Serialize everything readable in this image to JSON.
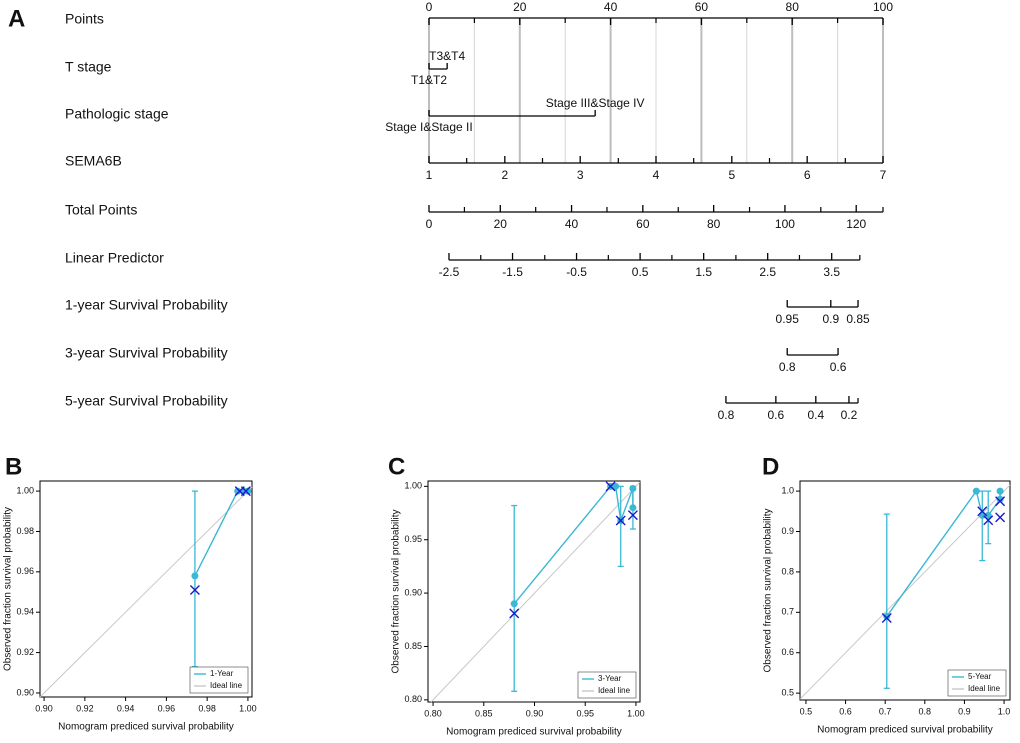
{
  "panel_labels": [
    "A",
    "B",
    "C",
    "D"
  ],
  "nomogram": {
    "rows": [
      {
        "label": "Points",
        "ticks": [
          0,
          20,
          40,
          60,
          80,
          100
        ],
        "tick_points": [
          0,
          20,
          40,
          60,
          80,
          100
        ],
        "minor_points": [
          10,
          30,
          50,
          70,
          90
        ]
      },
      {
        "label": "T stage",
        "categories": [
          "T1&T2",
          "T3&T4"
        ],
        "category_points": [
          0,
          4
        ]
      },
      {
        "label": "Pathologic stage",
        "categories": [
          "Stage I&Stage II",
          "Stage III&Stage IV"
        ],
        "category_points": [
          0,
          36.6
        ]
      },
      {
        "label": "SEMA6B",
        "ticks": [
          1,
          2,
          3,
          4,
          5,
          6,
          7
        ],
        "tick_points": [
          0,
          16.7,
          33.3,
          50,
          66.7,
          83.3,
          100
        ],
        "minor_points": [
          8.3,
          25,
          41.7,
          58.3,
          75,
          91.7
        ]
      },
      {
        "label": "Total Points",
        "ticks": [
          0,
          20,
          40,
          60,
          80,
          100,
          120
        ],
        "tick_points": [
          0,
          15.7,
          31.4,
          47.1,
          62.7,
          78.4,
          94.1
        ],
        "minor_points": [
          7.8,
          23.5,
          39.2,
          54.9,
          70.6,
          86.3,
          100
        ]
      },
      {
        "label": "Linear Predictor",
        "ticks": [
          -2.5,
          -1.5,
          -0.5,
          0.5,
          1.5,
          2.5,
          3.5
        ],
        "tick_points": [
          4.4,
          18.4,
          32.5,
          46.5,
          60.5,
          74.6,
          88.7
        ],
        "minor_points": [
          11.4,
          25.5,
          39.5,
          53.5,
          67.6,
          81.6,
          94.9
        ]
      },
      {
        "label": "1-year Survival Probability",
        "ticks": [
          0.95,
          0.9,
          0.85
        ],
        "tick_points": [
          78.9,
          88.5,
          94.5
        ]
      },
      {
        "label": "3-year Survival Probability",
        "ticks": [
          0.8,
          0.6
        ],
        "tick_points": [
          78.9,
          90.1
        ]
      },
      {
        "label": "5-year Survival Probability",
        "ticks": [
          0.8,
          0.6,
          0.4,
          0.2
        ],
        "tick_points": [
          65.4,
          76.4,
          85.2,
          92.5
        ],
        "minor_points": [
          94.5
        ]
      }
    ]
  },
  "chart_data": [
    {
      "type": "calibration",
      "xlabel": "Nomogram prediced survival probability",
      "ylabel": "Observed fraction survival probability",
      "xlim": [
        0.898,
        1.002
      ],
      "ylim": [
        0.898,
        1.005
      ],
      "xticks": [
        {
          "value": 0.9,
          "label": "0.90"
        },
        0.92,
        0.94,
        0.96,
        0.98,
        {
          "value": 1,
          "label": "1.00"
        }
      ],
      "yticks": [
        {
          "value": 0.9,
          "label": "0.90"
        },
        0.92,
        0.94,
        0.96,
        0.98,
        {
          "value": 1,
          "label": "1.00"
        }
      ],
      "series": [
        {
          "name": "1-Year",
          "color": "#3bb8d4",
          "x": [
            0.974,
            0.995,
            0.998,
            1.0
          ],
          "values": [
            0.958,
            1.0,
            1.0,
            1.0
          ],
          "err_low": [
            0.913,
            null,
            null,
            null
          ],
          "err_high": [
            1.0,
            null,
            null,
            null
          ]
        },
        {
          "name": "Ideal line",
          "color": "#c8c8c8",
          "x": [
            0.898,
            1.002
          ],
          "values": [
            0.898,
            1.002
          ]
        }
      ],
      "markers": {
        "color": "#1a1acc",
        "x": [
          0.974,
          0.996,
          0.999
        ],
        "values": [
          0.951,
          1.0,
          1.0
        ]
      }
    },
    {
      "type": "calibration",
      "xlabel": "Nomogram prediced survival probability",
      "ylabel": "Observed fraction survival probability",
      "xlim": [
        0.795,
        1.004
      ],
      "ylim": [
        0.798,
        1.005
      ],
      "xticks": [
        {
          "value": 0.8,
          "label": "0.80"
        },
        0.85,
        {
          "value": 0.9,
          "label": "0.90"
        },
        0.95,
        {
          "value": 1,
          "label": "1.00"
        }
      ],
      "yticks": [
        {
          "value": 0.8,
          "label": "0.80"
        },
        0.85,
        {
          "value": 0.9,
          "label": "0.90"
        },
        0.95,
        {
          "value": 1,
          "label": "1.00"
        }
      ],
      "series": [
        {
          "name": "3-Year",
          "color": "#3bb8d4",
          "x": [
            0.88,
            0.975,
            0.98,
            0.985,
            0.997,
            0.997
          ],
          "values": [
            0.89,
            1.0,
            1.0,
            0.968,
            0.998,
            0.98
          ],
          "err_low": [
            0.808,
            null,
            null,
            0.925,
            null,
            0.96
          ],
          "err_high": [
            0.982,
            null,
            null,
            1.0,
            null,
            1.0
          ]
        },
        {
          "name": "Ideal line",
          "color": "#c8c8c8",
          "x": [
            0.798,
            1.004
          ],
          "values": [
            0.798,
            1.004
          ]
        }
      ],
      "markers": {
        "color": "#1a1acc",
        "x": [
          0.88,
          0.975,
          0.985,
          0.997
        ],
        "values": [
          0.881,
          1.0,
          0.968,
          0.973
        ]
      }
    },
    {
      "type": "calibration",
      "xlabel": "Nomogram prediced survival probability",
      "ylabel": "Observed fraction survival probability",
      "xlim": [
        0.485,
        1.015
      ],
      "ylim": [
        0.483,
        1.025
      ],
      "xticks": [
        0.5,
        0.6,
        0.7,
        0.8,
        0.9,
        {
          "value": 1,
          "label": "1.0"
        }
      ],
      "yticks": [
        0.5,
        0.6,
        0.7,
        0.8,
        0.9,
        {
          "value": 1,
          "label": "1.0"
        }
      ],
      "series": [
        {
          "name": "5-Year",
          "color": "#3bb8d4",
          "x": [
            0.704,
            0.93,
            0.945,
            0.96,
            0.99,
            0.99
          ],
          "values": [
            0.69,
            1.0,
            0.94,
            0.94,
            0.98,
            1.0
          ],
          "err_low": [
            0.512,
            null,
            0.828,
            0.87,
            null,
            null
          ],
          "err_high": [
            0.943,
            null,
            1.0,
            1.0,
            null,
            null
          ]
        },
        {
          "name": "Ideal line",
          "color": "#c8c8c8",
          "x": [
            0.485,
            1.015
          ],
          "values": [
            0.485,
            1.015
          ]
        }
      ],
      "markers": {
        "color": "#1a1acc",
        "x": [
          0.704,
          0.945,
          0.96,
          0.99,
          0.99
        ],
        "values": [
          0.686,
          0.95,
          0.928,
          0.935,
          0.975
        ]
      }
    }
  ]
}
